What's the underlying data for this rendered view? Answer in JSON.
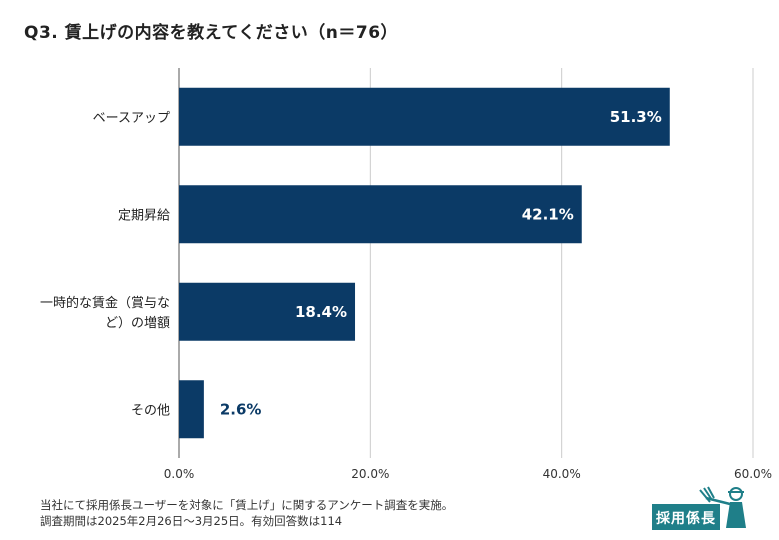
{
  "title": "Q3. 賃上げの内容を教えてください（n＝76）",
  "chart_data": {
    "type": "bar",
    "orientation": "horizontal",
    "categories": [
      [
        "ベースアップ"
      ],
      [
        "定期昇給"
      ],
      [
        "一時的な賃金（賞与な",
        "ど）の増額"
      ],
      [
        "その他"
      ]
    ],
    "values": [
      51.3,
      42.1,
      18.4,
      2.6
    ],
    "value_labels": [
      "51.3%",
      "42.1%",
      "18.4%",
      "2.6%"
    ],
    "xlim": [
      0,
      60
    ],
    "xticks": [
      0,
      20,
      40,
      60
    ],
    "xtick_labels": [
      "0.0%",
      "20.0%",
      "40.0%",
      "60.0%"
    ],
    "grid": true,
    "bar_color": "#0b3a66",
    "grid_color": "#cccccc"
  },
  "footnote": {
    "line1": "当社にて採用係長ユーザーを対象に「賃上げ」に関するアンケート調査を実施。",
    "line2": "調査期間は2025年2月26日〜3月25日。有効回答数は114"
  },
  "logo": {
    "text": "採用係長",
    "color": "#1f7f89"
  }
}
